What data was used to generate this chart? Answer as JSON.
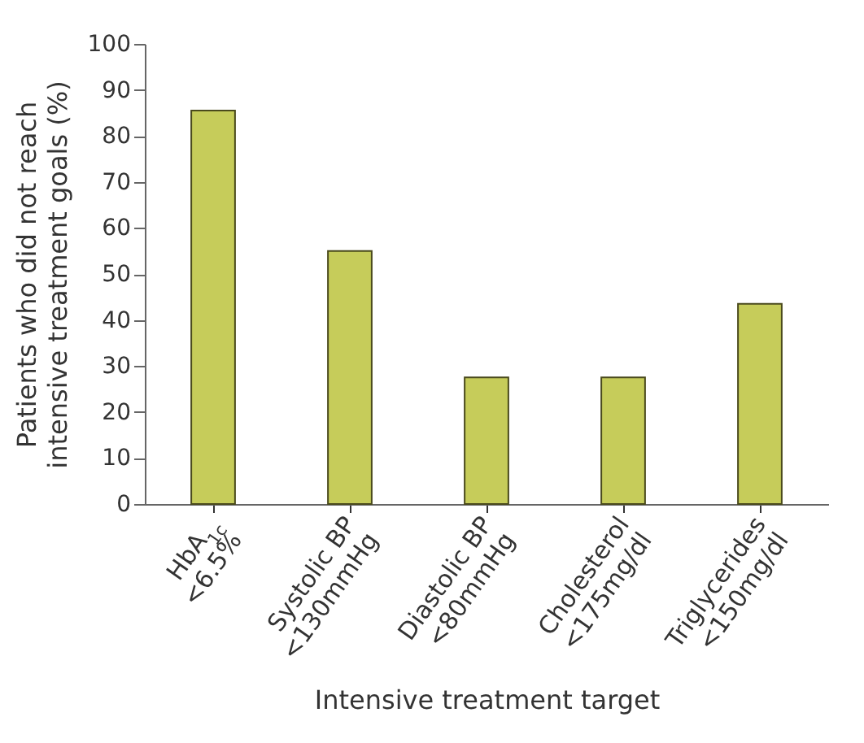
{
  "chart_data": {
    "type": "bar",
    "xlabel": "Intensive treatment target",
    "ylabel": "Patients who did not reach intensive treatment goals (%)",
    "categories": [
      "HbA$_{1c}$\n<6.5%",
      "Systolic BP\n<130mmHg",
      "Diastolic BP\n<80mmHg",
      "Cholesterol\n<175mg/dl",
      "Triglycerides\n<150mg/dl"
    ],
    "values": [
      85.5,
      55,
      27.5,
      27.5,
      43.5
    ],
    "color": "#c6cc5a",
    "ylim": [
      0,
      100
    ],
    "yticks": [
      0,
      10,
      20,
      30,
      40,
      50,
      60,
      70,
      80,
      90,
      100
    ],
    "grid": false
  }
}
